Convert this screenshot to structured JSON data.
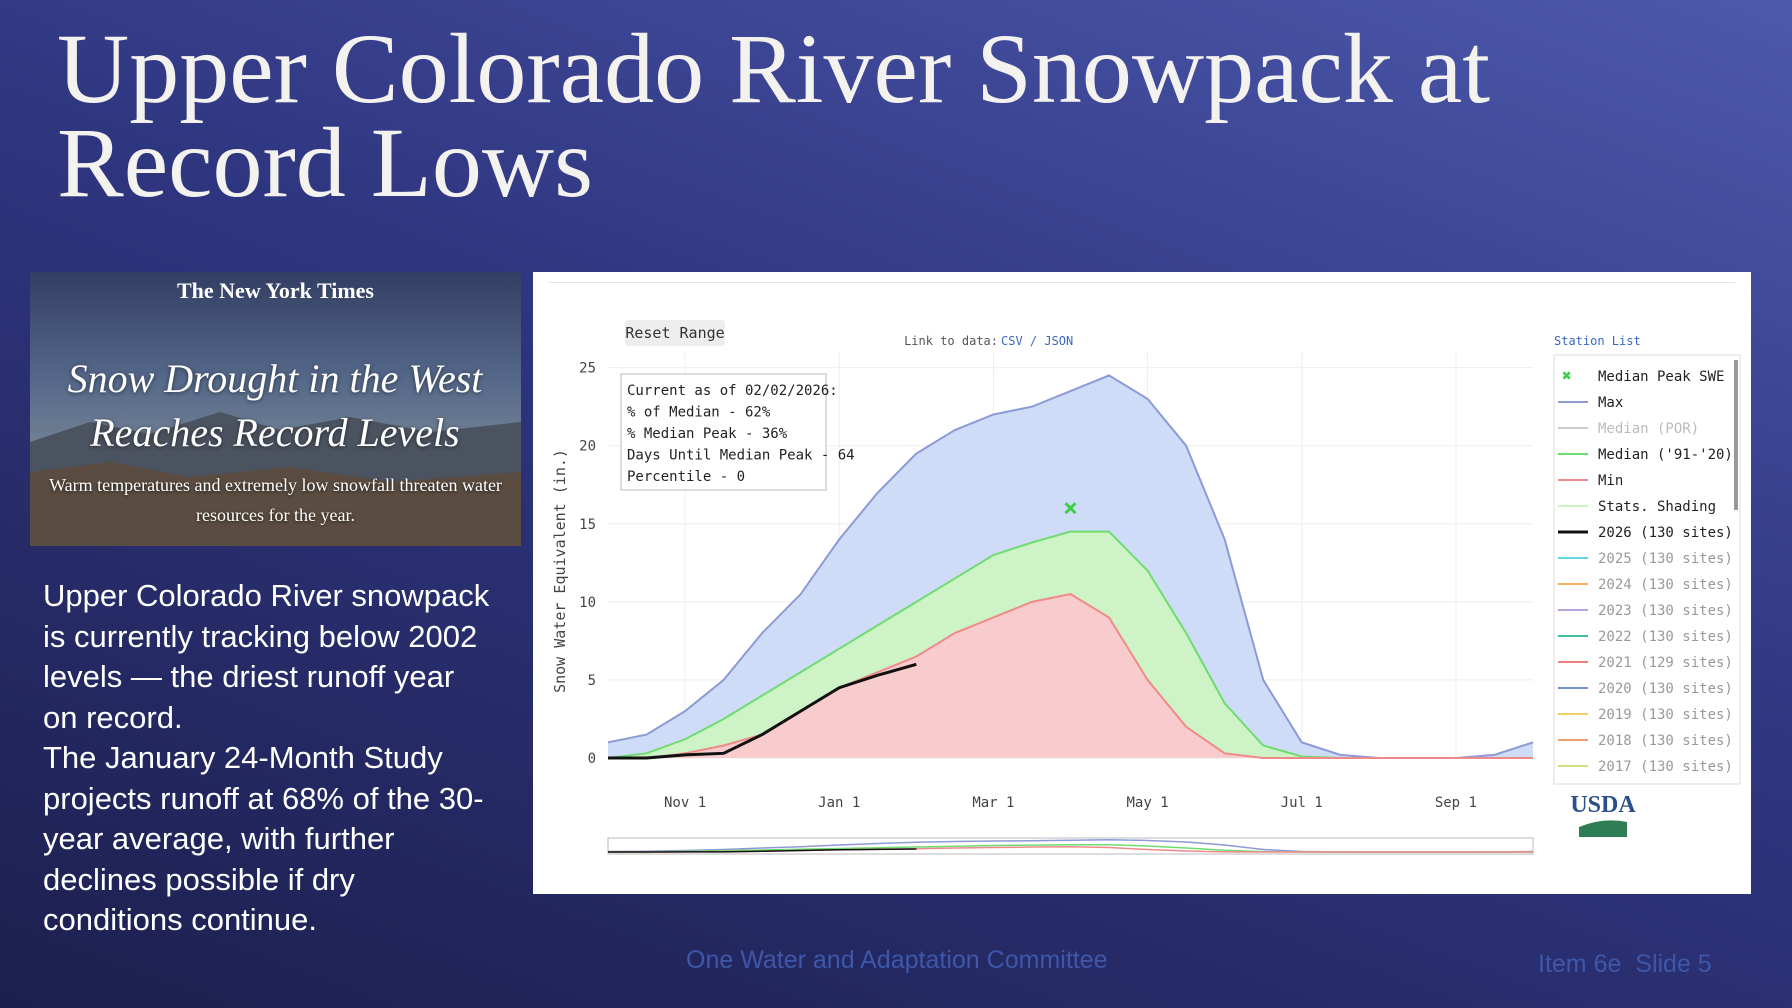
{
  "slide": {
    "title": "Upper Colorado River Snowpack at Record Lows",
    "article": {
      "masthead": "The New York Times",
      "headline": "Snow Drought in the West Reaches Record Levels",
      "subhead": "Warm temperatures and extremely low snowfall threaten water resources for the year."
    },
    "body": [
      "Upper Colorado River snowpack is currently tracking below 2002 levels — the driest runoff year on record.",
      "The January 24-Month Study projects runoff at 68% of the 30-year average, with further declines possible if dry conditions continue."
    ],
    "footer": {
      "center": "One Water and Adaptation Committee",
      "right": "Item 6e  Slide 5"
    }
  },
  "chart_data": {
    "type": "line",
    "y_label": "Snow Water Equivalent (in.)",
    "reset_button": "Reset Range",
    "link_label": "Link to data:",
    "link_formats": "CSV / JSON",
    "station_list": "Station List",
    "logo": "USDA",
    "annotation": [
      "Current as of 02/02/2026:",
      "% of Median - 62%",
      "% Median Peak - 36%",
      "Days Until Median Peak - 64",
      "Percentile - 0"
    ],
    "categories": [
      null,
      null,
      "Nov 1",
      null,
      null,
      null,
      "Jan 1",
      null,
      null,
      null,
      "Mar 1",
      null,
      null,
      null,
      "May 1",
      null,
      null,
      null,
      "Jul 1",
      null,
      null,
      null,
      "Sep 1",
      null,
      null
    ],
    "ylim": [
      0,
      26
    ],
    "yticks": [
      0,
      5,
      10,
      15,
      20,
      25
    ],
    "grid": true,
    "series": [
      {
        "name": "Median Peak SWE",
        "color": "#3ecf4a",
        "mode": "markers",
        "values": [
          null,
          null,
          null,
          null,
          null,
          null,
          null,
          null,
          null,
          null,
          null,
          null,
          16,
          null,
          null,
          null,
          null,
          null,
          null,
          null,
          null,
          null,
          null,
          null,
          null
        ]
      },
      {
        "name": "Max",
        "color": "#8c9ad6",
        "fill": "#cfdcf8",
        "values": [
          1,
          1.5,
          3,
          5,
          8,
          10.5,
          14,
          17,
          19.5,
          21,
          22,
          22.5,
          23.5,
          24.5,
          23,
          20,
          14,
          5,
          1,
          0.2,
          0,
          0,
          0,
          0.2,
          1
        ]
      },
      {
        "name": "Median ('91-'20)",
        "color": "#6fdc6f",
        "fill": "#cdf3c6",
        "values": [
          0,
          0.3,
          1.2,
          2.5,
          4,
          5.5,
          7,
          8.5,
          10,
          11.5,
          13,
          13.8,
          14.5,
          14.5,
          12,
          8,
          3.5,
          0.8,
          0.1,
          0,
          0,
          0,
          0,
          0,
          0
        ]
      },
      {
        "name": "Min",
        "color": "#f08a8a",
        "fill": "#f8cccc",
        "values": [
          0,
          0,
          0.3,
          0.8,
          1.5,
          3,
          4.5,
          5.5,
          6.5,
          8,
          9,
          10,
          10.5,
          9,
          5,
          2,
          0.3,
          0,
          0,
          0,
          0,
          0,
          0,
          0,
          0
        ]
      },
      {
        "name": "2026 (130 sites)",
        "color": "#111111",
        "values": [
          0,
          0,
          0.2,
          0.3,
          1.5,
          3,
          4.5,
          5.3,
          6,
          null,
          null,
          null,
          null,
          null,
          null,
          null,
          null,
          null,
          null,
          null,
          null,
          null,
          null,
          null,
          null
        ]
      }
    ],
    "other_legend": [
      {
        "name": "Median (POR)",
        "color": "#cccccc"
      },
      {
        "name": "Stats. Shading",
        "color": "#c8f5c0"
      },
      {
        "name": "2025 (130 sites)",
        "color": "#5fd6e0"
      },
      {
        "name": "2024 (130 sites)",
        "color": "#f5b060"
      },
      {
        "name": "2023 (130 sites)",
        "color": "#b9a2e0"
      },
      {
        "name": "2022 (130 sites)",
        "color": "#3fbfa0"
      },
      {
        "name": "2021 (129 sites)",
        "color": "#f08080"
      },
      {
        "name": "2020 (130 sites)",
        "color": "#7090d0"
      },
      {
        "name": "2019 (130 sites)",
        "color": "#f0d060"
      },
      {
        "name": "2018 (130 sites)",
        "color": "#f0a070"
      },
      {
        "name": "2017 (130 sites)",
        "color": "#d0e080"
      }
    ]
  }
}
